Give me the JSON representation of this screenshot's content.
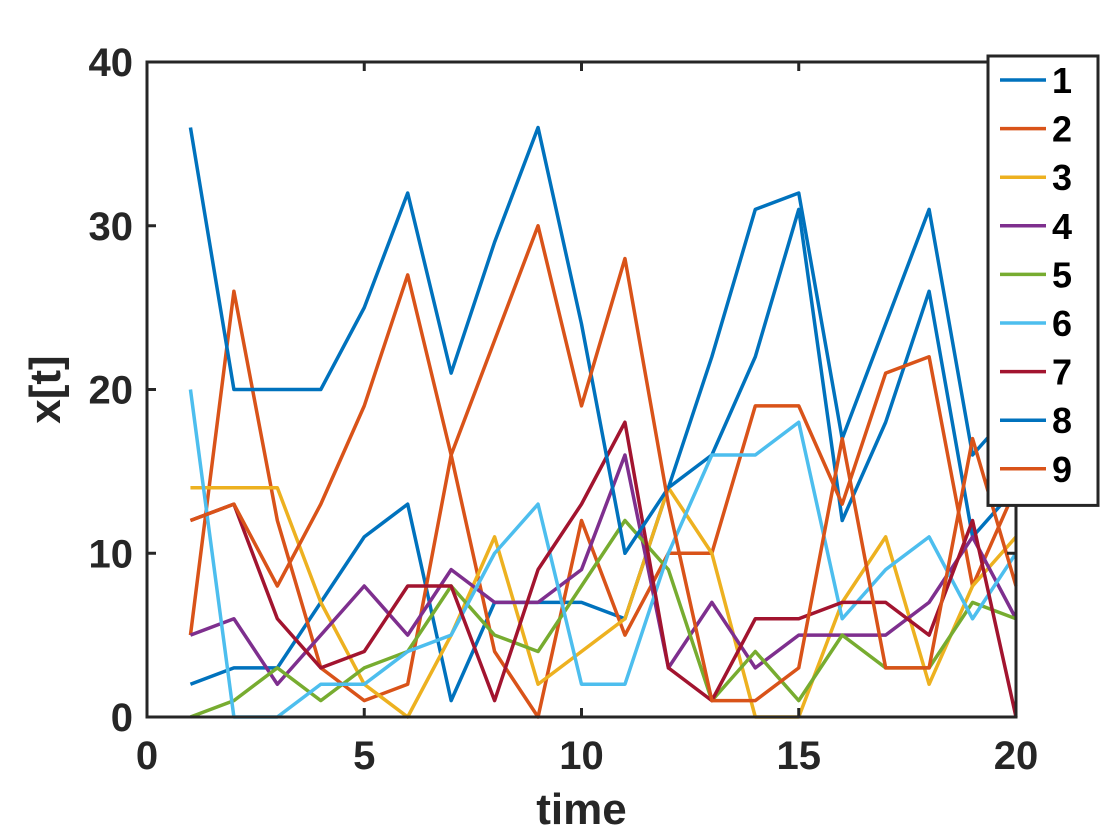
{
  "chart_data": {
    "type": "line",
    "title": "",
    "xlabel": "time",
    "ylabel": "x[t]",
    "xlim": [
      0,
      20
    ],
    "ylim": [
      0,
      40
    ],
    "xticks": [
      0,
      5,
      10,
      15,
      20
    ],
    "yticks": [
      0,
      10,
      20,
      30,
      40
    ],
    "grid": false,
    "legend_position": "top-right",
    "x": [
      1,
      2,
      3,
      4,
      5,
      6,
      7,
      8,
      9,
      10,
      11,
      12,
      13,
      14,
      15,
      16,
      17,
      18,
      19,
      20
    ],
    "series": [
      {
        "name": "1",
        "color": "#0072BD",
        "values": [
          2,
          3,
          3,
          7,
          11,
          13,
          1,
          7,
          7,
          7,
          6,
          14,
          16,
          22,
          31,
          12,
          18,
          26,
          11,
          14
        ]
      },
      {
        "name": "2",
        "color": "#D95319",
        "values": [
          5,
          26,
          12,
          3,
          1,
          2,
          16,
          4,
          0,
          12,
          5,
          10,
          10,
          19,
          19,
          13,
          21,
          22,
          8,
          14
        ]
      },
      {
        "name": "3",
        "color": "#EDB120",
        "values": [
          14,
          14,
          14,
          7,
          2,
          0,
          5,
          11,
          2,
          4,
          6,
          14,
          10,
          0,
          0,
          7,
          11,
          2,
          8,
          11
        ]
      },
      {
        "name": "4",
        "color": "#7E2F8E",
        "values": [
          5,
          6,
          2,
          5,
          8,
          5,
          9,
          7,
          7,
          9,
          16,
          3,
          7,
          3,
          5,
          5,
          5,
          7,
          11,
          6
        ]
      },
      {
        "name": "5",
        "color": "#77AC30",
        "values": [
          0,
          1,
          3,
          1,
          3,
          4,
          8,
          5,
          4,
          8,
          12,
          9,
          1,
          4,
          1,
          5,
          3,
          3,
          7,
          6
        ]
      },
      {
        "name": "6",
        "color": "#4DBEEE",
        "values": [
          20,
          0,
          0,
          2,
          2,
          4,
          5,
          10,
          13,
          2,
          2,
          10,
          16,
          16,
          18,
          6,
          9,
          11,
          6,
          10
        ]
      },
      {
        "name": "7",
        "color": "#A2142F",
        "values": [
          12,
          13,
          6,
          3,
          4,
          8,
          8,
          1,
          9,
          13,
          18,
          3,
          1,
          6,
          6,
          7,
          7,
          5,
          12,
          0
        ]
      },
      {
        "name": "8",
        "color": "#0072BD",
        "values": [
          36,
          20,
          20,
          20,
          25,
          32,
          21,
          29,
          36,
          24,
          10,
          14,
          22,
          31,
          32,
          17,
          24,
          31,
          16,
          19
        ]
      },
      {
        "name": "9",
        "color": "#D95319",
        "values": [
          12,
          13,
          8,
          13,
          19,
          27,
          16,
          23,
          30,
          19,
          28,
          13,
          1,
          1,
          3,
          17,
          3,
          3,
          17,
          8
        ]
      }
    ]
  }
}
